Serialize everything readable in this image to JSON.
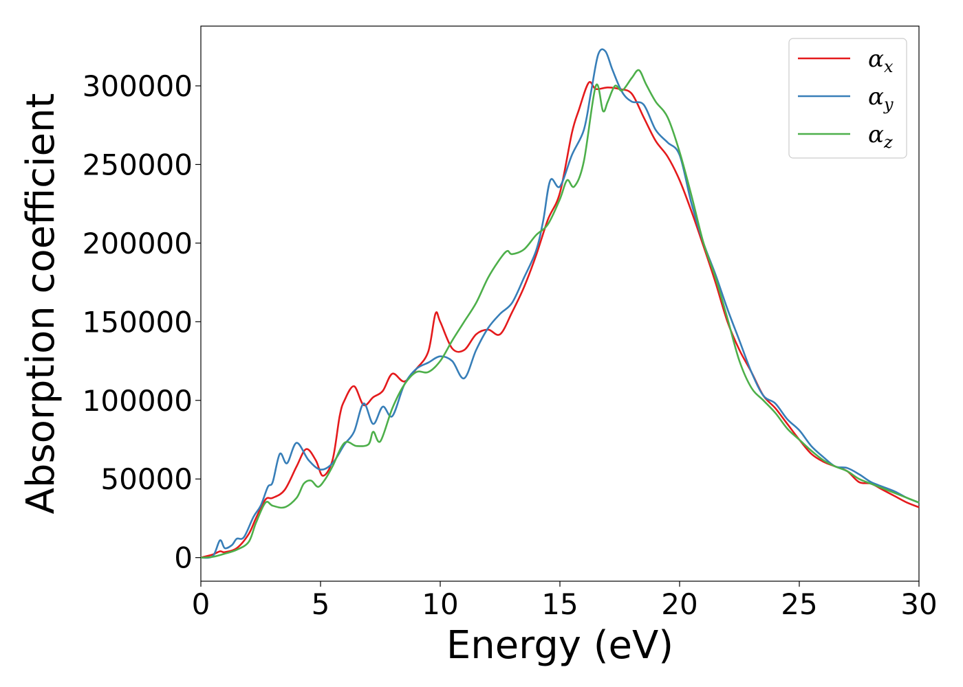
{
  "chart_data": {
    "type": "line",
    "xlabel": "Energy (eV)",
    "ylabel": "Absorption coefficient",
    "xlim": [
      0,
      30
    ],
    "ylim": [
      -15000,
      338000
    ],
    "xticks": [
      "0",
      "5",
      "10",
      "15",
      "20",
      "25",
      "30"
    ],
    "yticks": [
      "0",
      "50000",
      "100000",
      "150000",
      "200000",
      "250000",
      "300000"
    ],
    "grid": false,
    "legend_position": "top-right",
    "series": [
      {
        "name": "αx",
        "symbol": "α",
        "subscript": "x",
        "color": "#e41a1c",
        "x": [
          0,
          0.5,
          0.8,
          1.0,
          1.5,
          2.0,
          2.3,
          2.7,
          3.0,
          3.5,
          4.0,
          4.4,
          4.8,
          5.1,
          5.5,
          5.8,
          6.0,
          6.4,
          6.8,
          7.2,
          7.6,
          8.0,
          8.5,
          9.0,
          9.5,
          9.8,
          10.0,
          10.5,
          11.0,
          11.5,
          12.0,
          12.5,
          13.0,
          13.5,
          14.0,
          14.5,
          15.0,
          15.5,
          15.8,
          16.2,
          16.5,
          17.0,
          17.5,
          18.0,
          18.5,
          19.0,
          19.5,
          20.0,
          20.5,
          21.0,
          21.5,
          22.0,
          22.5,
          23.0,
          23.5,
          24.0,
          24.5,
          25.0,
          25.5,
          26.0,
          26.5,
          27.0,
          27.5,
          28.0,
          28.5,
          29.0,
          29.5,
          30.0
        ],
        "y": [
          0,
          2000,
          4000,
          3500,
          6000,
          15000,
          25000,
          37000,
          38000,
          43000,
          58000,
          69000,
          62000,
          52000,
          62000,
          90000,
          100000,
          109000,
          97000,
          102000,
          106000,
          117000,
          112000,
          120000,
          131000,
          155000,
          150000,
          133000,
          132000,
          142000,
          145000,
          142000,
          156000,
          172000,
          192000,
          215000,
          232000,
          270000,
          285000,
          302000,
          298000,
          299000,
          298000,
          295000,
          280000,
          265000,
          255000,
          240000,
          220000,
          198000,
          175000,
          150000,
          132000,
          118000,
          103000,
          95000,
          85000,
          75000,
          66000,
          61000,
          58000,
          55000,
          48000,
          47000,
          43000,
          39000,
          35000,
          32000
        ]
      },
      {
        "name": "αy",
        "symbol": "α",
        "subscript": "y",
        "color": "#377eb8",
        "x": [
          0,
          0.5,
          0.8,
          1.0,
          1.3,
          1.5,
          1.8,
          2.2,
          2.5,
          2.8,
          3.0,
          3.3,
          3.6,
          4.0,
          4.5,
          5.0,
          5.5,
          6.0,
          6.4,
          6.8,
          7.2,
          7.6,
          8.0,
          8.5,
          9.0,
          9.5,
          10.0,
          10.5,
          11.0,
          11.5,
          12.0,
          12.5,
          13.0,
          13.5,
          14.0,
          14.3,
          14.6,
          15.0,
          15.5,
          16.0,
          16.3,
          16.6,
          16.9,
          17.2,
          17.6,
          18.0,
          18.5,
          19.0,
          19.5,
          20.0,
          20.5,
          21.0,
          21.5,
          22.0,
          22.5,
          23.0,
          23.5,
          24.0,
          24.5,
          25.0,
          25.5,
          26.0,
          26.5,
          27.0,
          27.5,
          28.0,
          28.5,
          29.0,
          29.5,
          30.0
        ],
        "y": [
          0,
          1000,
          11000,
          6000,
          8000,
          12000,
          13000,
          26000,
          33000,
          45000,
          48000,
          66000,
          60000,
          73000,
          62000,
          56000,
          60000,
          72000,
          80000,
          98000,
          85000,
          96000,
          90000,
          110000,
          120000,
          124000,
          128000,
          125000,
          114000,
          132000,
          146000,
          155000,
          162000,
          178000,
          195000,
          214000,
          240000,
          236000,
          256000,
          272000,
          296000,
          320000,
          322000,
          310000,
          296000,
          290000,
          288000,
          272000,
          264000,
          256000,
          225000,
          200000,
          180000,
          158000,
          138000,
          118000,
          103000,
          98000,
          88000,
          81000,
          71000,
          64000,
          58000,
          57000,
          53000,
          48000,
          45000,
          42000,
          38000,
          35000
        ]
      },
      {
        "name": "αz",
        "symbol": "α",
        "subscript": "z",
        "color": "#4daf4a",
        "x": [
          0,
          0.5,
          1.0,
          1.5,
          2.0,
          2.3,
          2.7,
          3.0,
          3.5,
          4.0,
          4.3,
          4.6,
          4.9,
          5.2,
          5.5,
          6.0,
          6.5,
          7.0,
          7.2,
          7.5,
          8.0,
          8.5,
          9.0,
          9.5,
          10.0,
          10.5,
          11.0,
          11.5,
          12.0,
          12.5,
          12.8,
          13.0,
          13.5,
          14.0,
          14.5,
          15.0,
          15.3,
          15.6,
          16.0,
          16.5,
          16.8,
          17.0,
          17.3,
          17.6,
          18.0,
          18.3,
          18.6,
          19.0,
          19.5,
          20.0,
          20.5,
          21.0,
          21.5,
          22.0,
          22.5,
          23.0,
          23.5,
          24.0,
          24.5,
          25.0,
          25.5,
          26.0,
          26.5,
          27.0,
          27.5,
          28.0,
          28.5,
          29.0,
          29.5,
          30.0
        ],
        "y": [
          0,
          500,
          2500,
          5000,
          10000,
          22000,
          35000,
          33000,
          32000,
          38000,
          47000,
          49000,
          45000,
          50000,
          58000,
          73000,
          71000,
          72000,
          80000,
          74000,
          95000,
          110000,
          118000,
          118000,
          125000,
          138000,
          150000,
          162000,
          178000,
          190000,
          195000,
          193000,
          196000,
          205000,
          212000,
          228000,
          240000,
          236000,
          252000,
          300000,
          284000,
          290000,
          300000,
          297000,
          305000,
          310000,
          301000,
          290000,
          280000,
          258000,
          230000,
          200000,
          178000,
          152000,
          125000,
          108000,
          100000,
          92000,
          82000,
          75000,
          68000,
          62000,
          58000,
          55000,
          50000,
          47000,
          44000,
          41000,
          38000,
          35000
        ]
      }
    ]
  }
}
